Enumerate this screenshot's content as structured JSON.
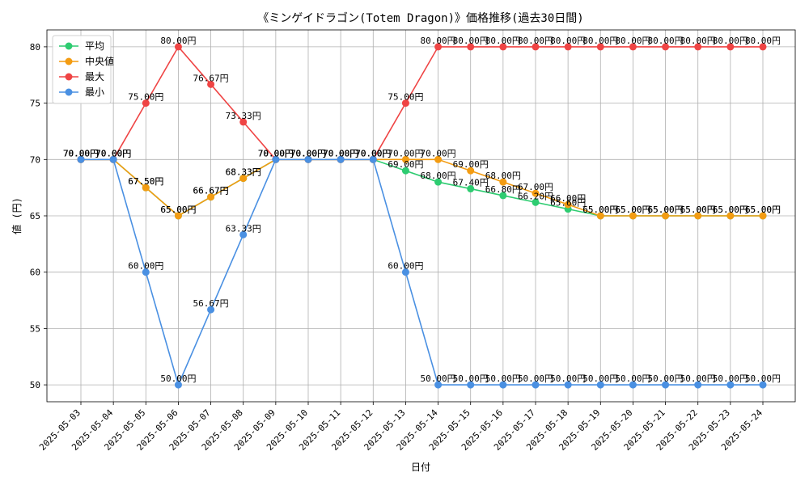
{
  "chart_data": {
    "type": "line",
    "title": "《ミンゲイドラゴン(Totem Dragon)》価格推移(過去30日間)",
    "xlabel": "日付",
    "ylabel": "値 (円)",
    "ylim": [
      48.5,
      81.5
    ],
    "yticks": [
      50,
      55,
      60,
      65,
      70,
      75,
      80
    ],
    "grid": true,
    "legend_position": "top-left",
    "value_suffix": "円",
    "categories": [
      "2025-05-03",
      "2025-05-04",
      "2025-05-05",
      "2025-05-06",
      "2025-05-07",
      "2025-05-08",
      "2025-05-09",
      "2025-05-10",
      "2025-05-11",
      "2025-05-12",
      "2025-05-13",
      "2025-05-14",
      "2025-05-15",
      "2025-05-16",
      "2025-05-17",
      "2025-05-18",
      "2025-05-19",
      "2025-05-20",
      "2025-05-21",
      "2025-05-22",
      "2025-05-23",
      "2025-05-24"
    ],
    "series": [
      {
        "name": "平均",
        "color": "#2ecc71",
        "values": [
          70.0,
          70.0,
          67.5,
          65.0,
          66.67,
          68.33,
          70.0,
          70.0,
          70.0,
          70.0,
          69.0,
          68.0,
          67.4,
          66.8,
          66.2,
          65.6,
          65.0,
          65.0,
          65.0,
          65.0,
          65.0,
          65.0
        ]
      },
      {
        "name": "中央値",
        "color": "#f39c12",
        "values": [
          70.0,
          70.0,
          67.5,
          65.0,
          66.67,
          68.33,
          70.0,
          70.0,
          70.0,
          70.0,
          70.0,
          70.0,
          69.0,
          68.0,
          67.0,
          66.0,
          65.0,
          65.0,
          65.0,
          65.0,
          65.0,
          65.0
        ]
      },
      {
        "name": "最大",
        "color": "#ef4444",
        "values": [
          70.0,
          70.0,
          75.0,
          80.0,
          76.67,
          73.33,
          70.0,
          70.0,
          70.0,
          70.0,
          75.0,
          80.0,
          80.0,
          80.0,
          80.0,
          80.0,
          80.0,
          80.0,
          80.0,
          80.0,
          80.0,
          80.0
        ]
      },
      {
        "name": "最小",
        "color": "#4a90e2",
        "values": [
          70.0,
          70.0,
          60.0,
          50.0,
          56.67,
          63.33,
          70.0,
          70.0,
          70.0,
          70.0,
          60.0,
          50.0,
          50.0,
          50.0,
          50.0,
          50.0,
          50.0,
          50.0,
          50.0,
          50.0,
          50.0,
          50.0
        ]
      }
    ]
  }
}
